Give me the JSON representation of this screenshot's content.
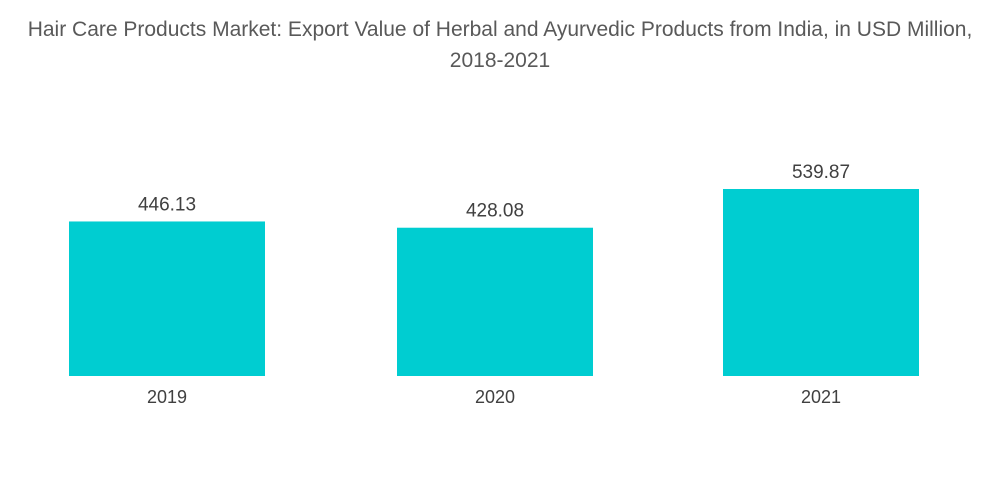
{
  "chart_data": {
    "type": "bar",
    "title": "Hair Care Products Market: Export Value of Herbal and Ayurvedic Products from India, in USD Million, 2018-2021",
    "categories": [
      "2019",
      "2020",
      "2021"
    ],
    "values": [
      446.13,
      428.08,
      539.87
    ],
    "value_labels": [
      "446.13",
      "428.08",
      "539.87"
    ],
    "xlabel": "",
    "ylabel": "",
    "ylim": [
      0,
      539.87
    ],
    "grid": false,
    "legend": "none",
    "color": "#00CDD1"
  }
}
